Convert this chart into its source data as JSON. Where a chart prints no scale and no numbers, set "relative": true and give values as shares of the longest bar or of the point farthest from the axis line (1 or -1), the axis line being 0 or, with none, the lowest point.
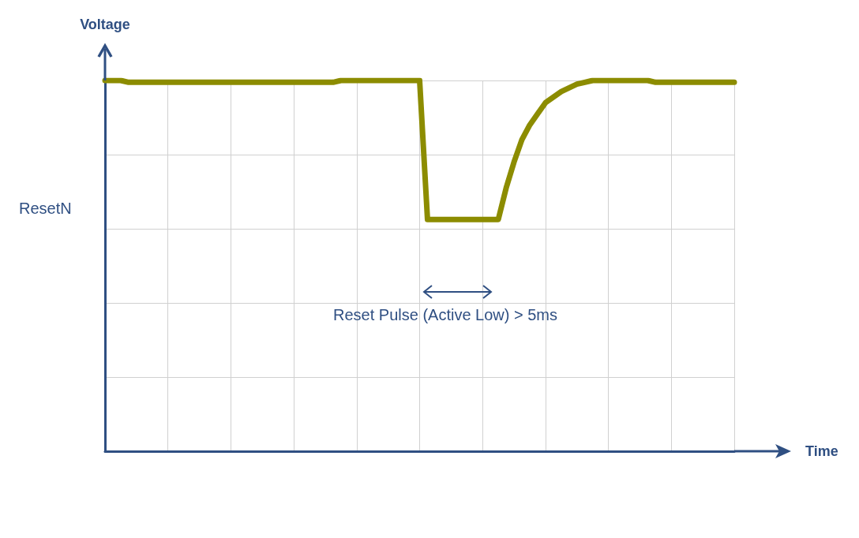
{
  "chart_data": {
    "type": "line",
    "relative": true,
    "xlabel": "Time",
    "ylabel": "Voltage",
    "categories": [
      null,
      null,
      null,
      null,
      null,
      null,
      null,
      null,
      null,
      null,
      null,
      null,
      null,
      null,
      null,
      null,
      null,
      null,
      null,
      null,
      null,
      null,
      null,
      null,
      null,
      null,
      null,
      null,
      null,
      null,
      null,
      null,
      null,
      null,
      null,
      null,
      null,
      null,
      null,
      null,
      null,
      null,
      null,
      null,
      null,
      null,
      null,
      null,
      null,
      null,
      null,
      null,
      null,
      null,
      null,
      null,
      null,
      null,
      null,
      null,
      null,
      null,
      null,
      null,
      null,
      null,
      null,
      null,
      null,
      null,
      null,
      null,
      null,
      null,
      null,
      null,
      null,
      null,
      null,
      null,
      null
    ],
    "series": [
      {
        "name": "ResetN",
        "color": "#8c8c00",
        "values": [
          1,
          1,
          1,
          0.995,
          0.995,
          0.995,
          0.995,
          0.995,
          0.995,
          0.995,
          0.995,
          0.995,
          0.995,
          0.995,
          0.995,
          0.995,
          0.995,
          0.995,
          0.995,
          0.995,
          0.995,
          0.995,
          0.995,
          0.995,
          0.995,
          0.995,
          0.995,
          0.995,
          0.995,
          0.995,
          1,
          1,
          1,
          1,
          1,
          1,
          1,
          1,
          1,
          1,
          1,
          0.625,
          0.625,
          0.625,
          0.625,
          0.625,
          0.625,
          0.625,
          0.625,
          0.625,
          0.625,
          0.71,
          0.78,
          0.84,
          0.88,
          0.91,
          0.94,
          0.955,
          0.97,
          0.98,
          0.99,
          0.995,
          1,
          1,
          1,
          1,
          1,
          1,
          1,
          1,
          0.995,
          0.995,
          0.995,
          0.995,
          0.995,
          0.995,
          0.995,
          0.995,
          0.995,
          0.995,
          0.995
        ]
      }
    ],
    "annotations": [
      "Reset Pulse (Active Low) > 5ms"
    ],
    "grid": true,
    "legend": false,
    "marker": "none",
    "line_style": "solid"
  }
}
